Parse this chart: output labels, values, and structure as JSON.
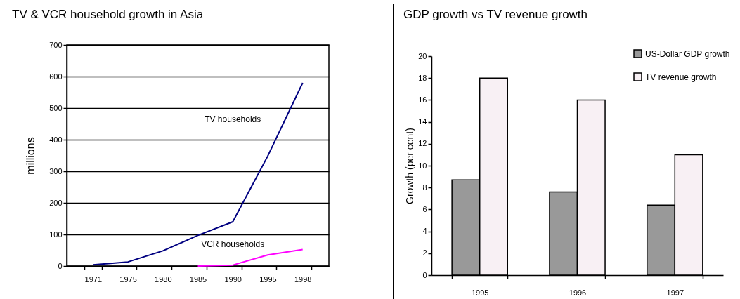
{
  "chart_data": [
    {
      "type": "line",
      "title": "TV & VCR household growth in Asia",
      "ylabel": "millions",
      "categories": [
        "1971",
        "1975",
        "1980",
        "1985",
        "1990",
        "1995",
        "1998"
      ],
      "series": [
        {
          "name": "TV  households",
          "color": "#000080",
          "values": [
            4,
            13,
            48,
            97,
            140,
            348,
            580
          ]
        },
        {
          "name": "VCR households",
          "color": "#ff00ff",
          "values": [
            null,
            null,
            null,
            0,
            3,
            35,
            52
          ]
        }
      ],
      "ylim": [
        0,
        700
      ],
      "yticks": [
        0,
        100,
        200,
        300,
        400,
        500,
        600,
        700
      ],
      "grid": "y"
    },
    {
      "type": "bar",
      "title": "GDP growth vs TV revenue growth",
      "ylabel": "Growth (per cent)",
      "categories": [
        "1995",
        "1996",
        "1997"
      ],
      "series": [
        {
          "name": "US-Dollar GDP growth",
          "color": "#999999",
          "values": [
            8.7,
            7.6,
            6.4
          ]
        },
        {
          "name": "TV revenue growth",
          "color": "#f8f0f4",
          "values": [
            18,
            16,
            11
          ]
        }
      ],
      "ylim": [
        0,
        20
      ],
      "yticks": [
        0,
        2,
        4,
        6,
        8,
        10,
        12,
        14,
        16,
        18,
        20
      ],
      "legend": "top right"
    }
  ]
}
